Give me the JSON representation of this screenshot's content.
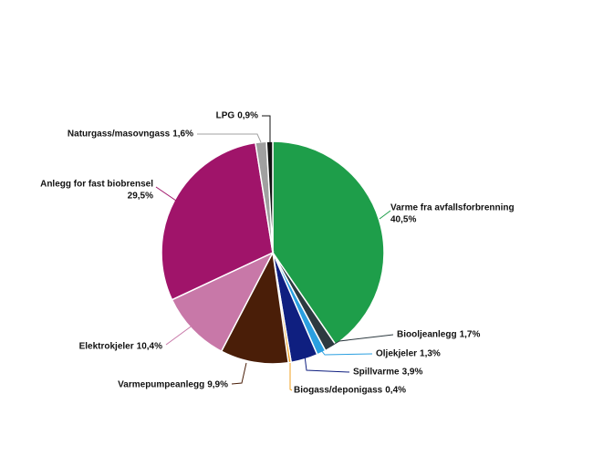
{
  "chart_data": {
    "type": "pie",
    "categories": [
      "Varme fra avfallsforbrenning",
      "Biooljeanlegg",
      "Oljekjeler",
      "Spillvarme",
      "Biogass/deponigass",
      "Varmepumpeanlegg",
      "Elektrokjeler",
      "Anlegg for fast biobrensel",
      "Naturgass/masovngass",
      "LPG"
    ],
    "values": [
      40.5,
      1.7,
      1.3,
      3.9,
      0.4,
      9.9,
      10.4,
      29.5,
      1.6,
      0.9
    ],
    "value_labels": [
      "40,5%",
      "1,7%",
      "1,3%",
      "3,9%",
      "0,4%",
      "9,9%",
      "10,4%",
      "29,5%",
      "1,6%",
      "0,9%"
    ],
    "colors": [
      "#1e9e4a",
      "#2d3a40",
      "#2a9fe0",
      "#0f1f80",
      "#f0a020",
      "#4a1e08",
      "#c878a8",
      "#a0146a",
      "#a0a0a0",
      "#111111"
    ]
  }
}
